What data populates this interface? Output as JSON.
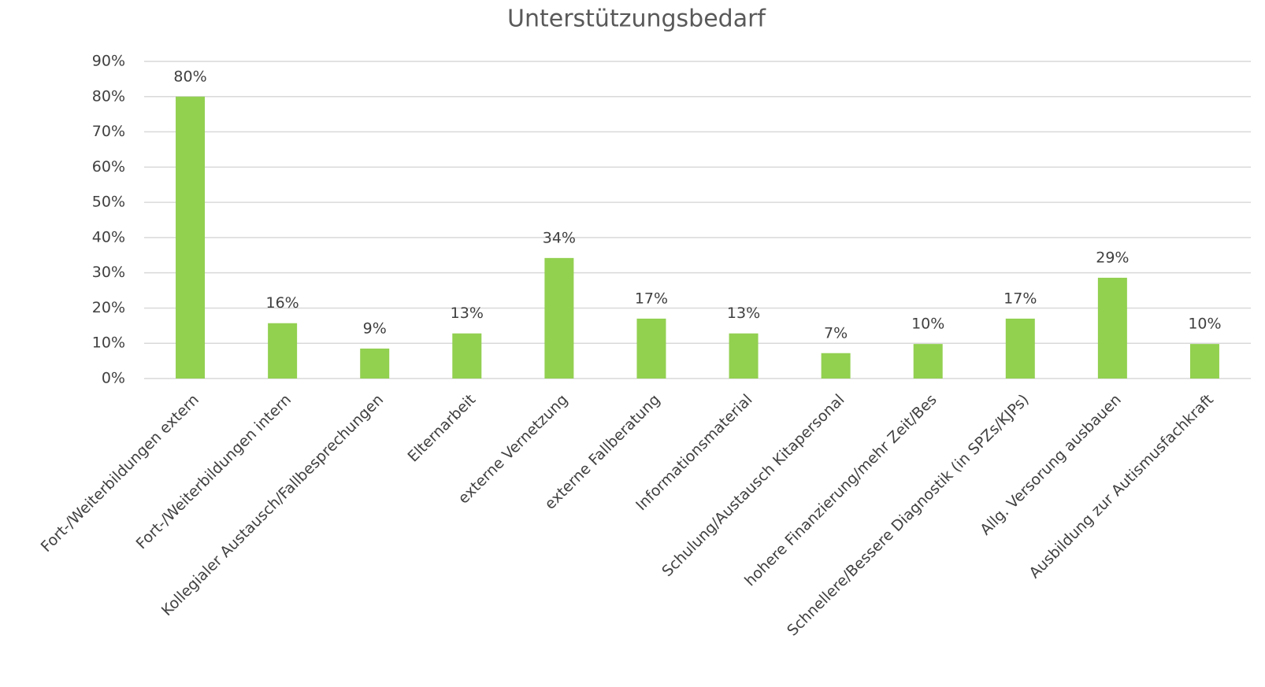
{
  "chart_data": {
    "type": "bar",
    "title": "Unterstützungsbedarf",
    "categories": [
      "Fort-/Weiterbildungen extern",
      "Fort-/Weiterbildungen intern",
      "Kollegialer Austausch/Fallbesprechungen",
      "Elternarbeit",
      "externe Vernetzung",
      "externe Fallberatung",
      "Informationsmaterial",
      "Schulung/Austausch Kitapersonal",
      "hohere Finanzierung/mehr Zeit/Bes",
      "Schnellere/Bessere Diagnostik (in SPZs/KJPs)",
      "Allg. Versorung ausbauen",
      "Ausbildung zur Autismusfachkraft"
    ],
    "values": [
      80,
      15.7,
      8.5,
      12.8,
      34.2,
      17,
      12.8,
      7.2,
      9.8,
      17,
      28.6,
      9.8
    ],
    "value_labels": [
      "80%",
      "16%",
      "9%",
      "13%",
      "34%",
      "17%",
      "13%",
      "7%",
      "10%",
      "17%",
      "29%",
      "10%"
    ],
    "color": "#92d050",
    "ylim": [
      0,
      90
    ],
    "yticks": [
      {
        "value": 0,
        "label": "0%"
      },
      {
        "value": 10,
        "label": "10%"
      },
      {
        "value": 20,
        "label": "20%"
      },
      {
        "value": 30,
        "label": "30%"
      },
      {
        "value": 40,
        "label": "40%"
      },
      {
        "value": 50,
        "label": "50%"
      },
      {
        "value": 60,
        "label": "60%"
      },
      {
        "value": 70,
        "label": "70%"
      },
      {
        "value": 80,
        "label": "80%"
      },
      {
        "value": 90,
        "label": "90%"
      }
    ],
    "grid": true
  }
}
